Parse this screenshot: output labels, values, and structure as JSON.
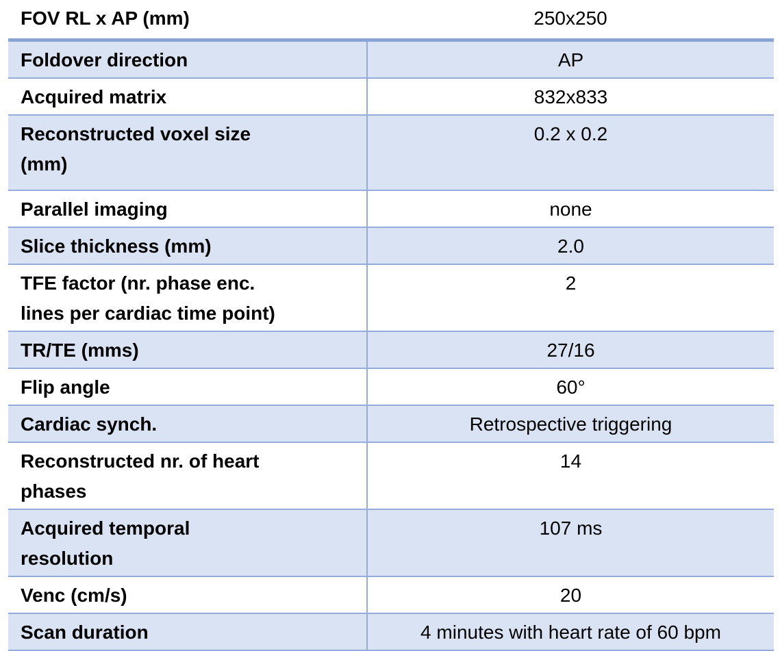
{
  "theme": {
    "band_fill": "#dae3f3",
    "border_color": "#94abdb",
    "thick_border_color": "#8aa4d6",
    "text_color": "#000000"
  },
  "table": {
    "description": "MRI scan parameter table, two columns: parameter name (bold) and value (centered)",
    "rows": [
      {
        "label": "FOV RL x AP (mm)",
        "value": "250x250"
      },
      {
        "label": "Foldover direction",
        "value": "AP"
      },
      {
        "label": "Acquired matrix",
        "value": "832x833"
      },
      {
        "label": "Reconstructed voxel size\n(mm)",
        "value": "0.2 x 0.2"
      },
      {
        "label": "Parallel imaging",
        "value": "none"
      },
      {
        "label": "Slice thickness (mm)",
        "value": "2.0"
      },
      {
        "label": "TFE factor (nr. phase enc.\nlines per cardiac time point)",
        "value": "2"
      },
      {
        "label": "TR/TE (mms)",
        "value": "27/16"
      },
      {
        "label": "Flip angle",
        "value": "60°"
      },
      {
        "label": "Cardiac synch.",
        "value": "Retrospective triggering"
      },
      {
        "label": "Reconstructed nr. of heart\nphases",
        "value": "14"
      },
      {
        "label": "Acquired temporal\nresolution",
        "value": "107 ms"
      },
      {
        "label": "Venc (cm/s)",
        "value": "20"
      },
      {
        "label": "Scan duration",
        "value": "4 minutes with heart rate of 60 bpm"
      }
    ]
  }
}
